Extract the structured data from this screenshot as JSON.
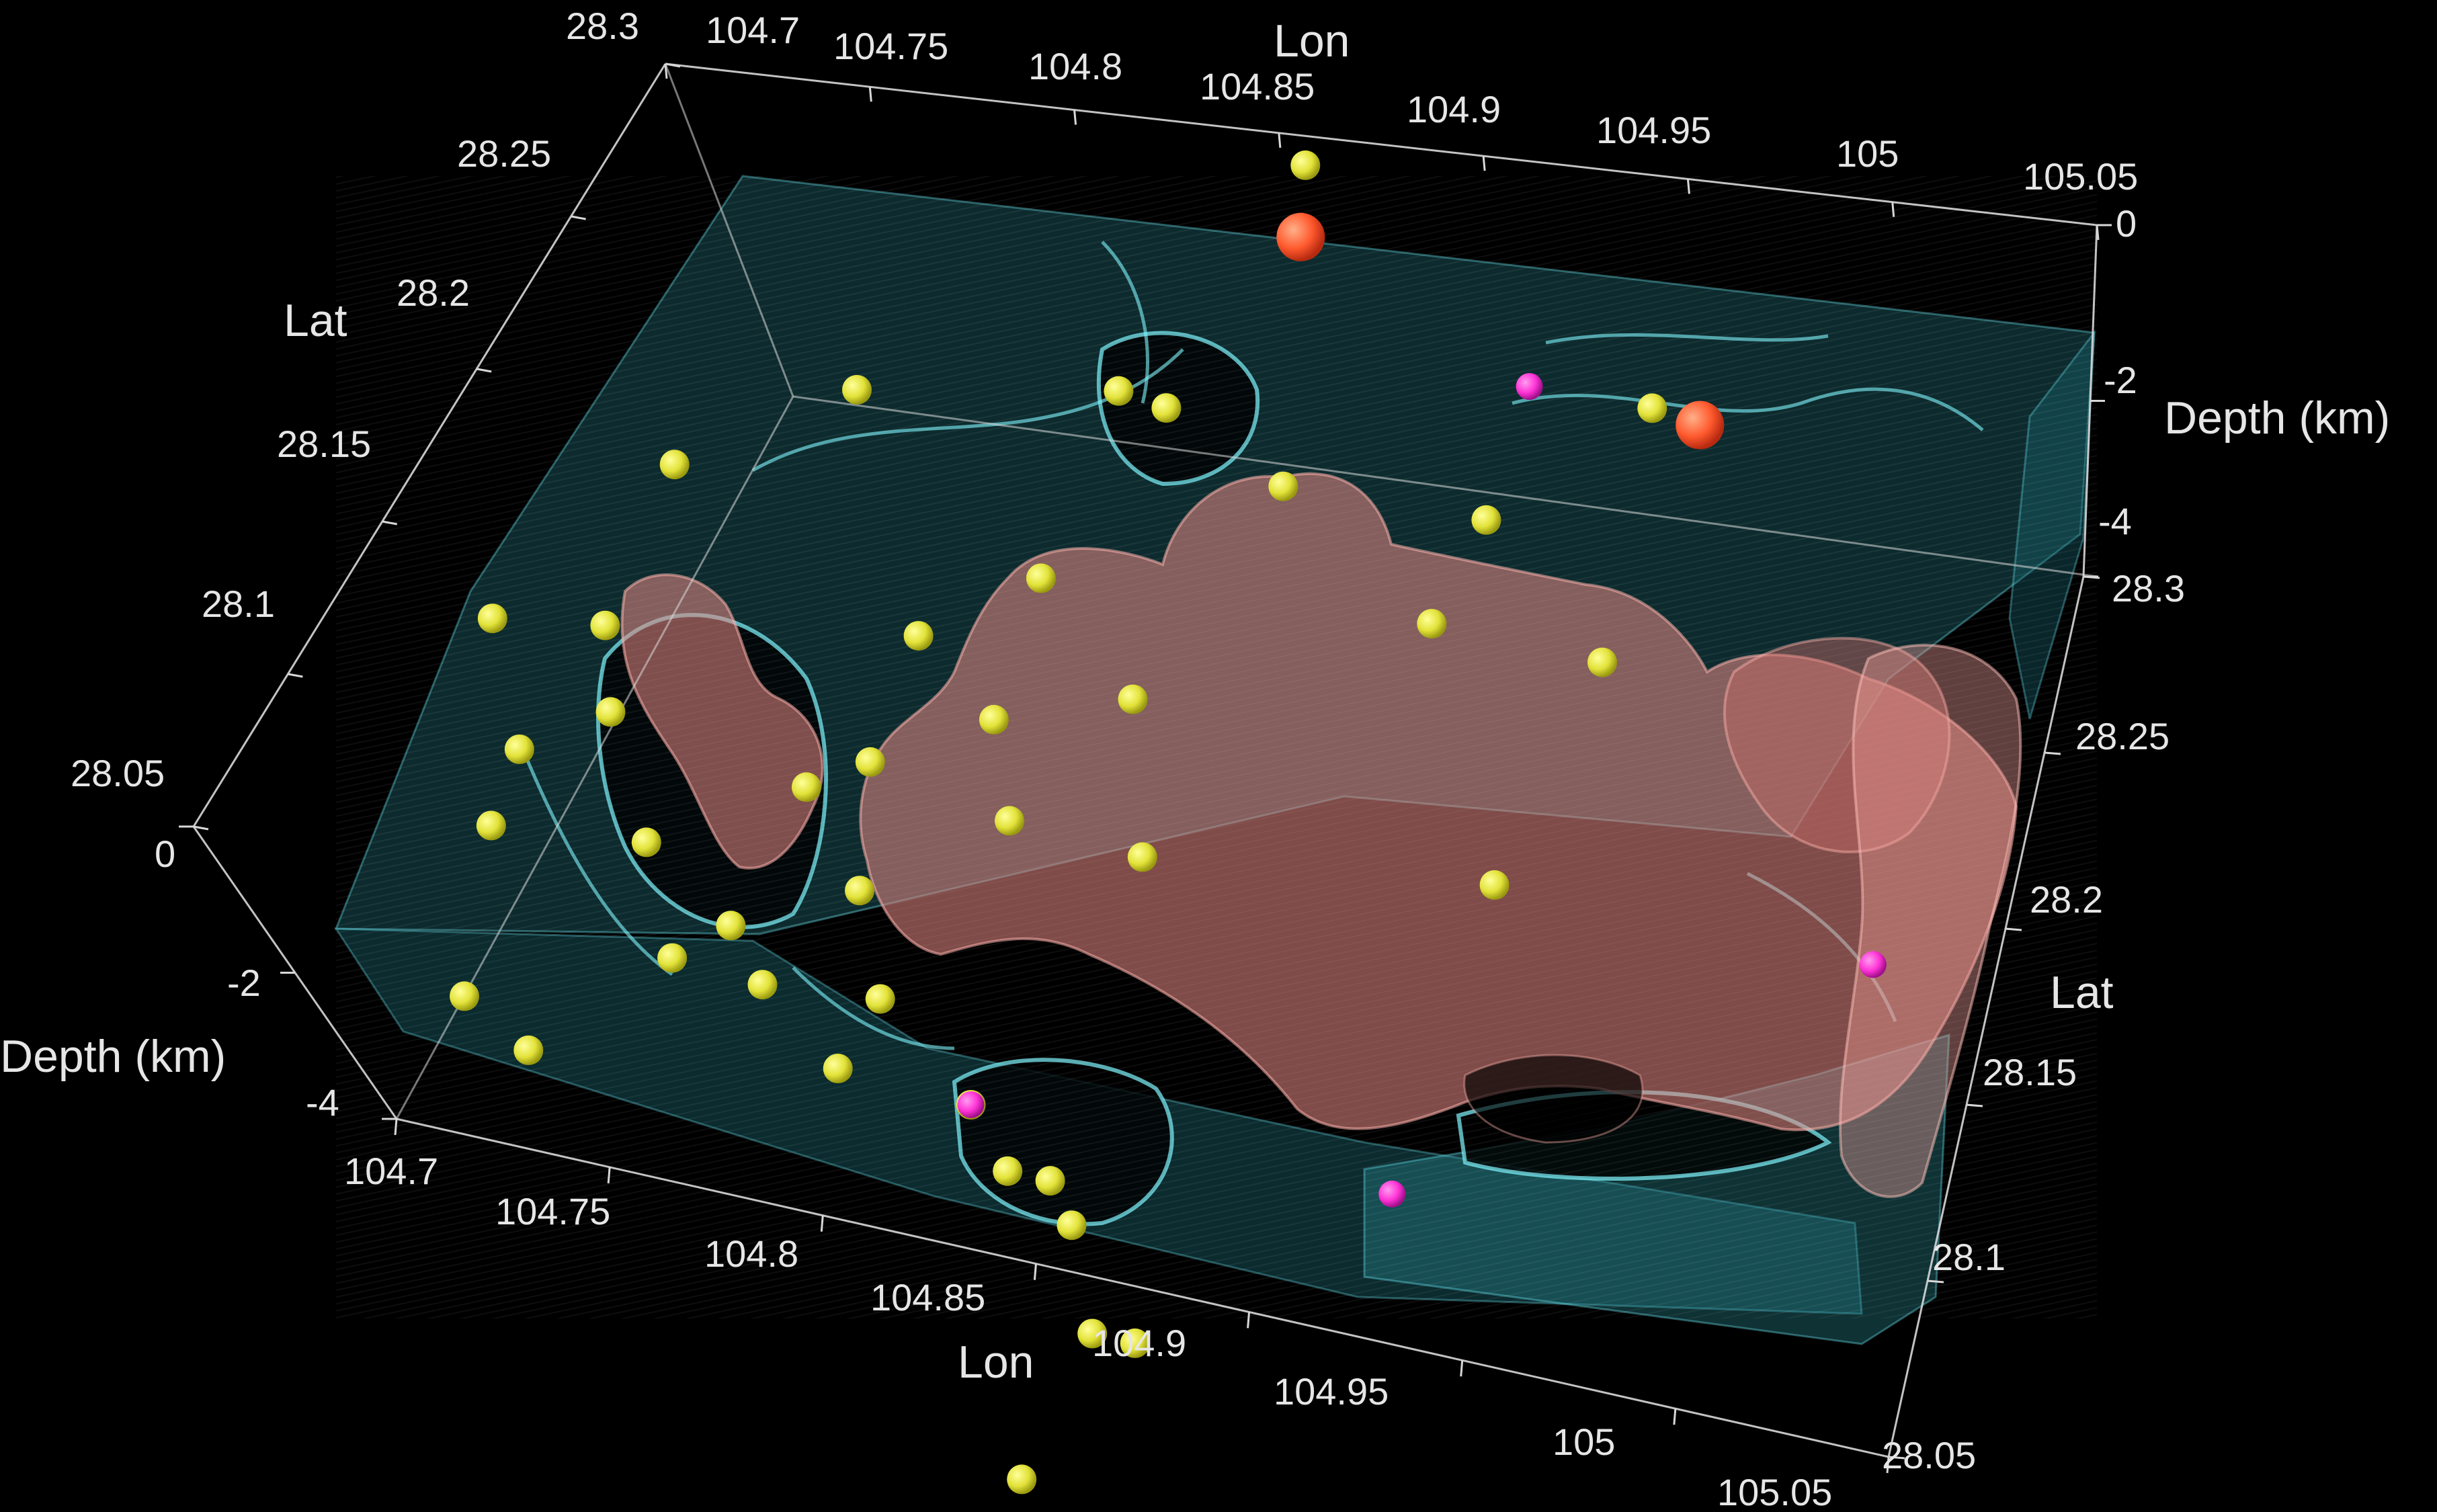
{
  "colors": {
    "background": "#000000",
    "axis_line": "#d8d8d8",
    "text": "#e6e6e6",
    "cyan_volume": "#3fbfc9",
    "salmon_volume": "#e88a85",
    "event_small": "#e8e84a",
    "event_medium": "#ff44dd",
    "event_large": "#ff5a36"
  },
  "top_axes": {
    "lon_title": "Lon",
    "lon_ticks": [
      "104.7",
      "104.75",
      "104.8",
      "104.85",
      "104.9",
      "104.95",
      "105",
      "105.05"
    ],
    "lat_title": "Lat",
    "lat_ticks": [
      "28.3",
      "28.25",
      "28.2",
      "28.15",
      "28.1",
      "28.05"
    ],
    "depth_title": "Depth (km)",
    "depth_ticks": [
      "0",
      "-2",
      "-4"
    ]
  },
  "bottom_axes": {
    "lon_title": "Lon",
    "lon_ticks": [
      "104.7",
      "104.75",
      "104.8",
      "104.85",
      "104.9",
      "104.95",
      "105",
      "105.05"
    ],
    "lat_title": "Lat",
    "lat_ticks": [
      "28.3",
      "28.25",
      "28.2",
      "28.15",
      "28.1",
      "28.05"
    ],
    "depth_title": "Depth (km)",
    "depth_ticks": [
      "0",
      "-2",
      "-4"
    ]
  },
  "events": {
    "small": [
      [
        104.86,
        28.27,
        -1.5
      ],
      [
        104.96,
        28.23,
        -1.2
      ],
      [
        104.74,
        28.18,
        -2.0
      ],
      [
        104.78,
        28.2,
        -1.6
      ],
      [
        104.71,
        28.14,
        -2.2
      ],
      [
        104.73,
        28.11,
        -2.0
      ],
      [
        104.72,
        28.1,
        -2.6
      ],
      [
        104.75,
        28.12,
        -1.8
      ],
      [
        104.76,
        28.1,
        -2.3
      ],
      [
        104.8,
        28.16,
        -2.4
      ],
      [
        104.82,
        28.18,
        -2.5
      ],
      [
        104.84,
        28.21,
        -1.4
      ],
      [
        104.85,
        28.21,
        -1.5
      ],
      [
        104.88,
        28.2,
        -1.6
      ],
      [
        104.93,
        28.2,
        -1.4
      ],
      [
        104.96,
        28.18,
        -1.8
      ],
      [
        104.92,
        28.18,
        -1.8
      ],
      [
        104.86,
        28.15,
        -1.9
      ],
      [
        104.83,
        28.14,
        -2.0
      ],
      [
        104.79,
        28.12,
        -2.3
      ],
      [
        104.8,
        28.13,
        -2.4
      ],
      [
        104.81,
        28.1,
        -2.3
      ],
      [
        104.82,
        28.08,
        -2.5
      ],
      [
        104.84,
        28.12,
        -2.1
      ],
      [
        104.87,
        28.12,
        -2.2
      ],
      [
        104.95,
        28.13,
        -2.1
      ],
      [
        104.82,
        28.06,
        -2.3
      ],
      [
        104.85,
        28.06,
        -2.4
      ],
      [
        104.86,
        28.05,
        -2.6
      ],
      [
        104.87,
        28.05,
        -2.6
      ],
      [
        104.88,
        28.04,
        -2.5
      ],
      [
        104.73,
        28.06,
        -2.5
      ],
      [
        104.75,
        28.05,
        -2.4
      ],
      [
        104.77,
        28.08,
        -2.6
      ],
      [
        104.78,
        28.09,
        -2.6
      ],
      [
        104.79,
        28.08,
        -2.7
      ],
      [
        104.74,
        28.14,
        -1.9
      ],
      [
        104.89,
        28.02,
        -2.7
      ],
      [
        104.9,
        28.02,
        -2.7
      ],
      [
        104.88,
        27.99,
        -3.1
      ]
    ],
    "medium": [
      [
        104.93,
        28.23,
        -1.3
      ],
      [
        104.85,
        28.06,
        -2.4
      ],
      [
        104.95,
        28.06,
        -2.3
      ],
      [
        105.04,
        28.13,
        -2.0
      ]
    ],
    "large": [
      [
        104.87,
        28.25,
        -1.2
      ],
      [
        104.97,
        28.23,
        -1.3
      ]
    ]
  }
}
